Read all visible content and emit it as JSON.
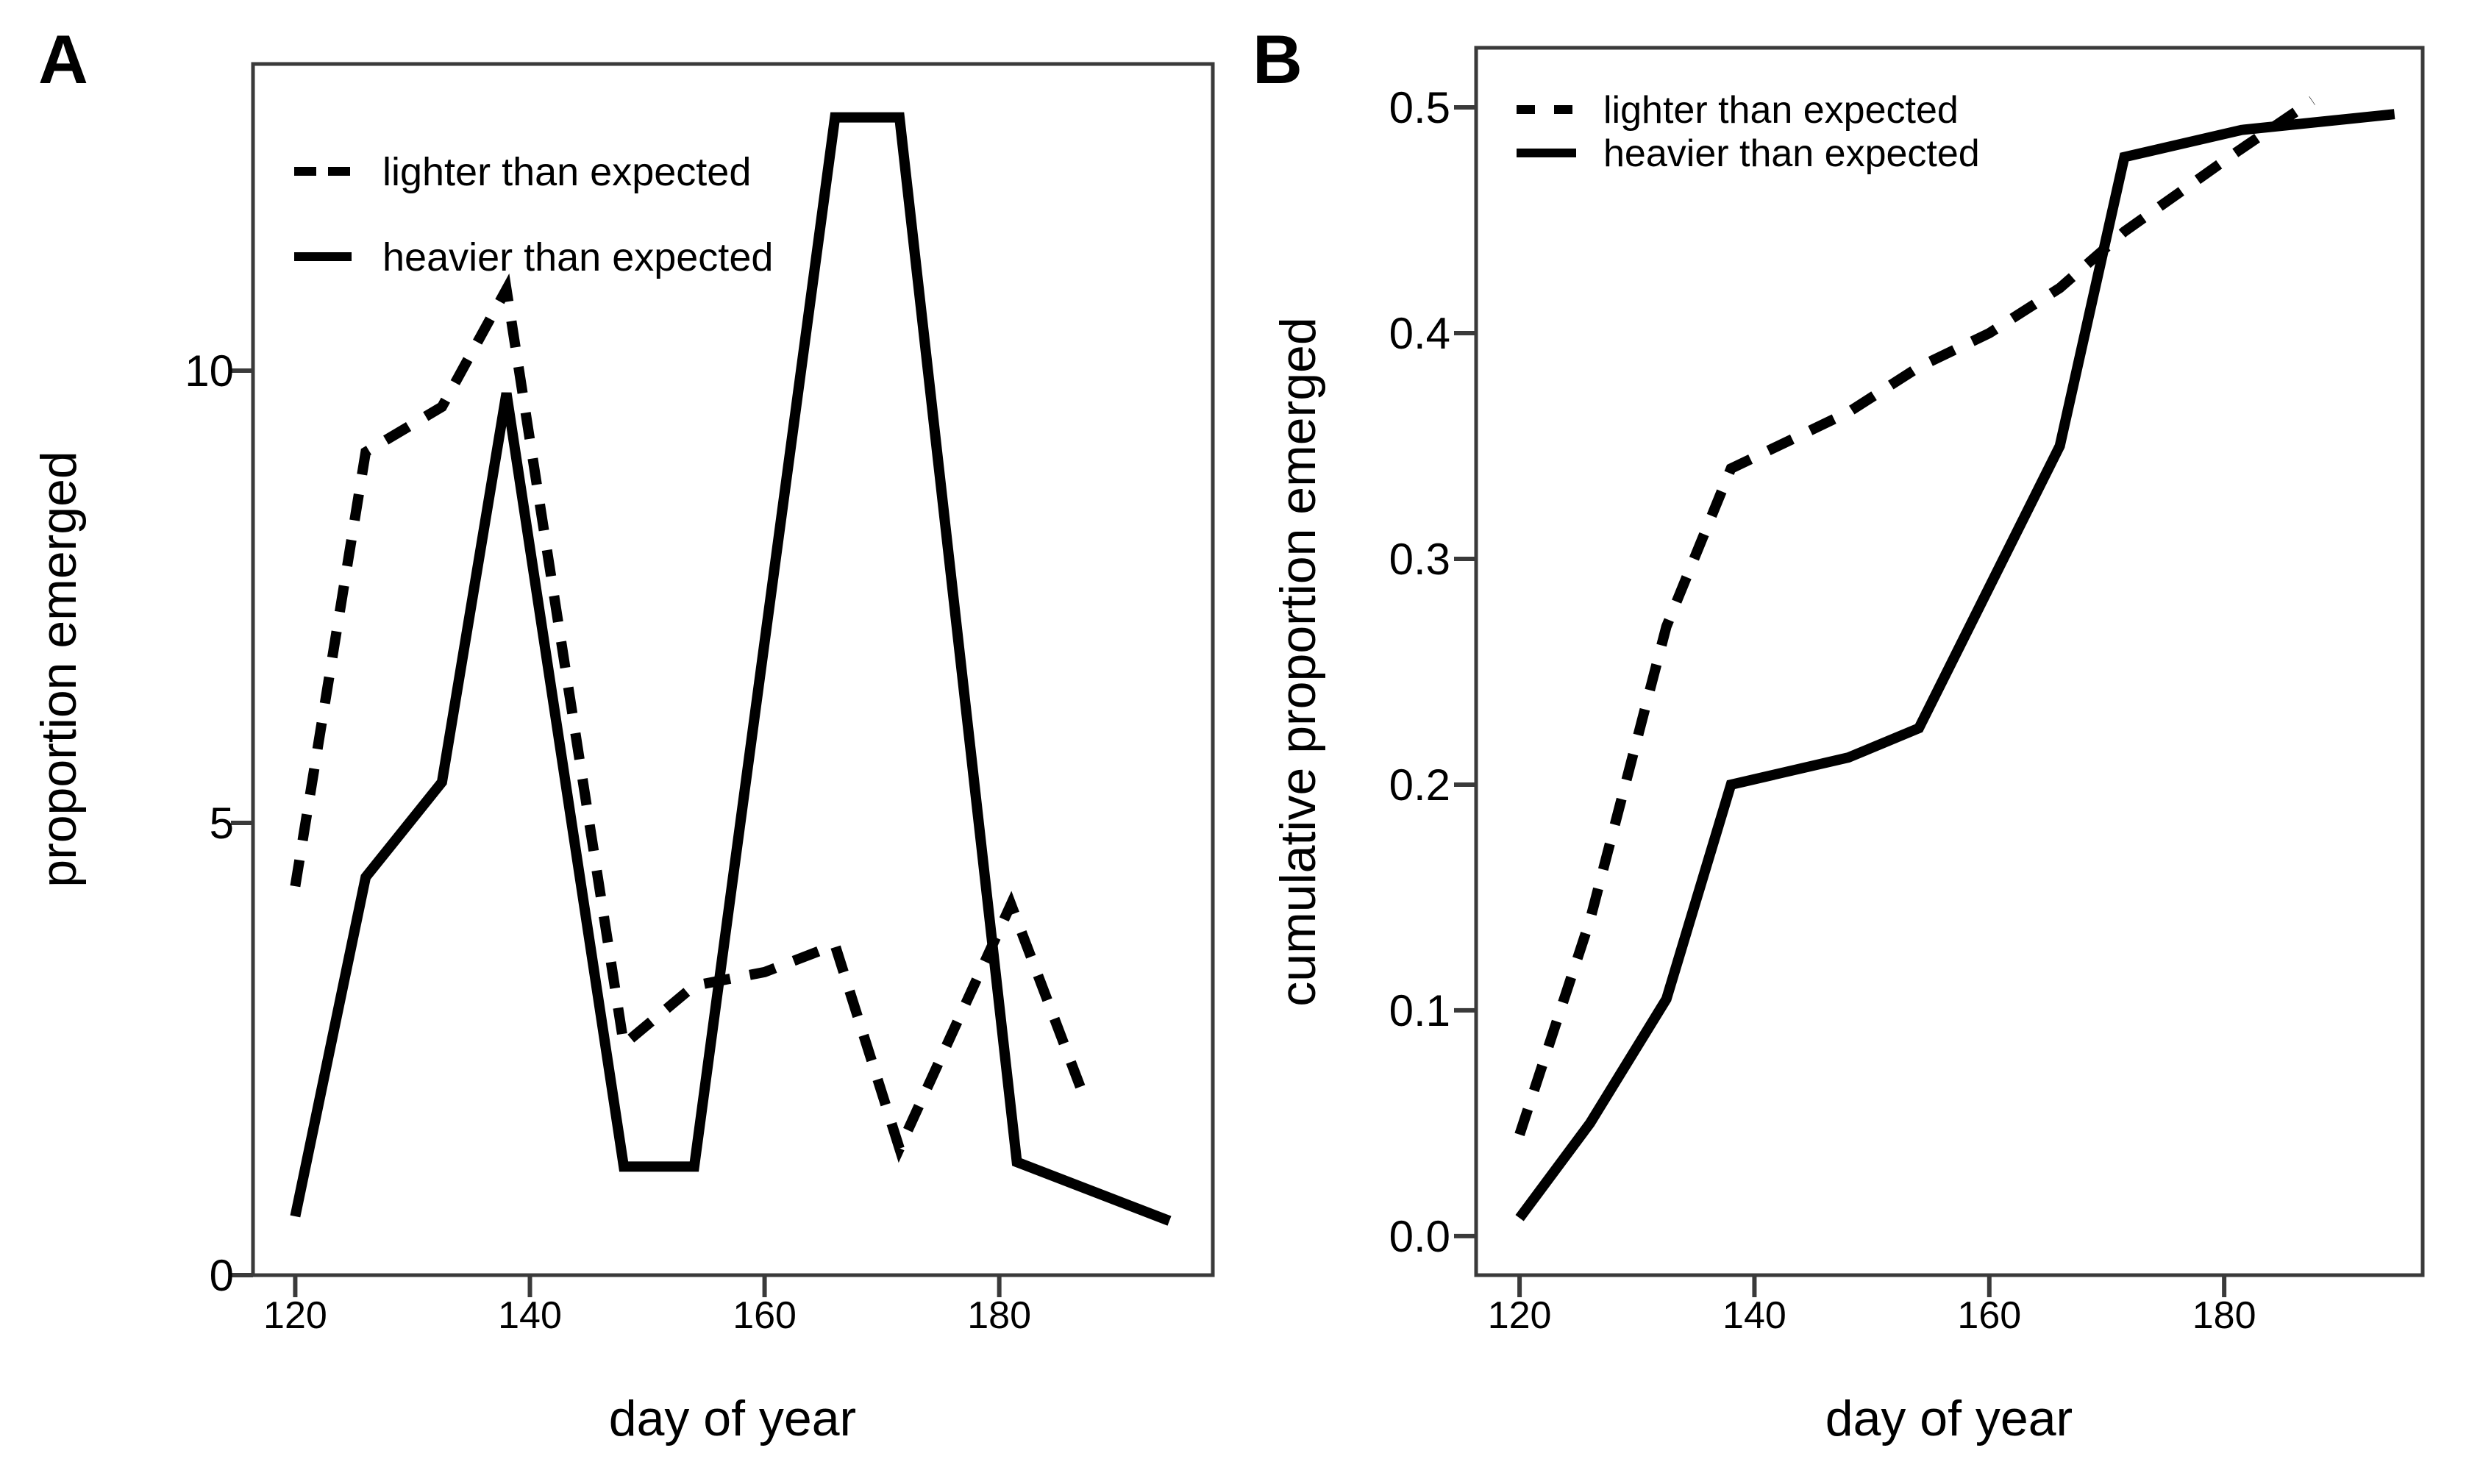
{
  "figure": {
    "background": "#ffffff",
    "panel_a_label": "A",
    "panel_b_label": "B"
  },
  "styles": {
    "line_color": "#000000",
    "axis_color": "#3a3a3a",
    "text_color": "#000000"
  },
  "chart_data": [
    {
      "id": "A",
      "type": "line",
      "panel_label": "A",
      "title": "",
      "xlabel": "day of year",
      "ylabel": "proportion emerged",
      "xlim": [
        116.4,
        198.2
      ],
      "ylim": [
        0,
        13.39
      ],
      "grid": "off",
      "x_ticks": [
        120,
        140,
        160,
        180
      ],
      "x_tick_labels": [
        "120",
        "140",
        "160",
        "180"
      ],
      "y_ticks": [
        0,
        5,
        10
      ],
      "y_tick_labels": [
        "0",
        "5",
        "10"
      ],
      "legend": {
        "position": "top-left",
        "entries": [
          {
            "label": "lighter than expected",
            "style": "dashed"
          },
          {
            "label": "heavier than expected",
            "style": "solid"
          }
        ]
      },
      "series": [
        {
          "name": "lighter than expected",
          "style": "dashed",
          "x": [
            120,
            126,
            132.5,
            138,
            148,
            154,
            160,
            166,
            171.5,
            181,
            187
          ],
          "y": [
            4.3,
            9.1,
            9.6,
            10.9,
            2.55,
            3.2,
            3.35,
            3.65,
            1.4,
            4.1,
            2.05
          ]
        },
        {
          "name": "heavier than expected",
          "style": "solid",
          "x": [
            120,
            126,
            132.5,
            138,
            148,
            154,
            166,
            171.5,
            181.5,
            194.5
          ],
          "y": [
            0.65,
            4.4,
            5.45,
            9.75,
            1.2,
            1.2,
            12.8,
            12.8,
            1.25,
            0.6
          ]
        }
      ]
    },
    {
      "id": "B",
      "type": "line",
      "panel_label": "B",
      "title": "",
      "xlabel": "day of year",
      "ylabel": "cumulative proportion emerged",
      "xlim": [
        116.3,
        196.9
      ],
      "ylim": [
        -0.0173,
        0.5264
      ],
      "grid": "off",
      "x_ticks": [
        120,
        140,
        160,
        180
      ],
      "x_tick_labels": [
        "120",
        "140",
        "160",
        "180"
      ],
      "y_ticks": [
        0.0,
        0.1,
        0.2,
        0.3,
        0.4,
        0.5
      ],
      "y_tick_labels": [
        "0.0",
        "0.1",
        "0.2",
        "0.3",
        "0.4",
        "0.5"
      ],
      "legend": {
        "position": "top-left",
        "entries": [
          {
            "label": "lighter than expected",
            "style": "dashed"
          },
          {
            "label": "heavier than expected",
            "style": "solid"
          }
        ]
      },
      "series": [
        {
          "name": "lighter than expected",
          "style": "dashed",
          "x": [
            120,
            126,
            132.5,
            138,
            148,
            154,
            160,
            166,
            171.5,
            181,
            187.5
          ],
          "y": [
            0.045,
            0.14,
            0.27,
            0.34,
            0.365,
            0.385,
            0.4,
            0.42,
            0.445,
            0.48,
            0.503
          ]
        },
        {
          "name": "heavier than expected",
          "style": "solid",
          "x": [
            120,
            126,
            132.5,
            138,
            148,
            154,
            166,
            171.5,
            181.5,
            194.5
          ],
          "y": [
            0.008,
            0.05,
            0.105,
            0.2,
            0.212,
            0.225,
            0.35,
            0.478,
            0.49,
            0.497
          ]
        }
      ]
    }
  ]
}
